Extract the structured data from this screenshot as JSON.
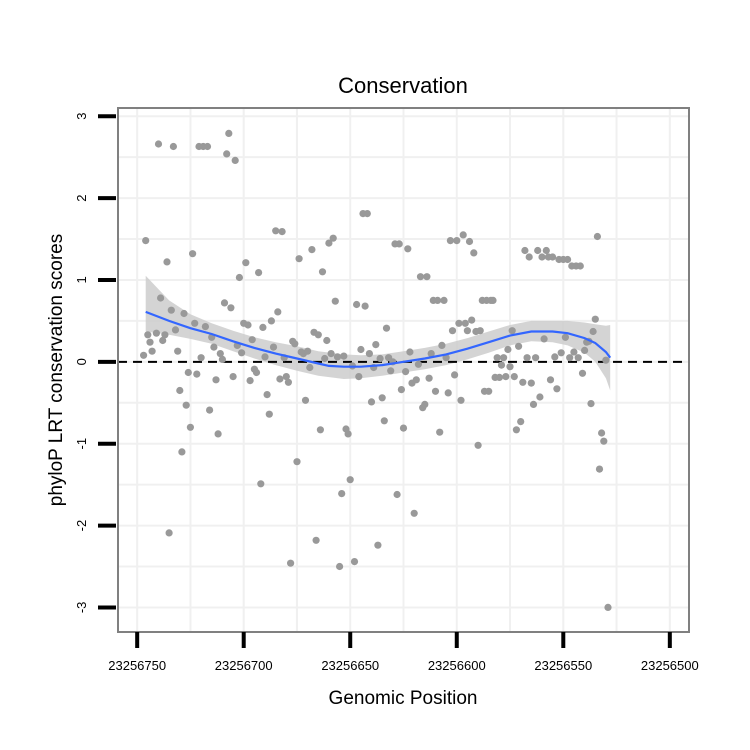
{
  "chart_data": {
    "type": "scatter",
    "title": "Conservation",
    "xlabel": "Genomic Position",
    "ylabel": "phyloP LRT conservation scores",
    "x_reversed": true,
    "xlim": [
      23256759,
      23256491
    ],
    "ylim": [
      -3.3,
      3.1
    ],
    "x_ticks": [
      23256750,
      23256700,
      23256650,
      23256600,
      23256550,
      23256500
    ],
    "x_tick_labels": [
      "23256750",
      "23256700",
      "23256650",
      "23256600",
      "23256550",
      "23256500"
    ],
    "y_ticks": [
      -3,
      -2,
      -1,
      0,
      1,
      2,
      3
    ],
    "y_tick_labels": [
      "-3",
      "-2",
      "-1",
      "0",
      "1",
      "2",
      "3"
    ],
    "reference_line": {
      "y": 0,
      "style": "dashed"
    },
    "colors": {
      "points": "#999999",
      "smooth_line": "#3366ff",
      "confidence_band": "#cccccc",
      "panel_border": "#808080",
      "grid": "#f0f0f0"
    },
    "points": [
      [
        23256746,
        1.48
      ],
      [
        23256747,
        0.08
      ],
      [
        23256745,
        0.33
      ],
      [
        23256744,
        0.24
      ],
      [
        23256743,
        0.13
      ],
      [
        23256741,
        0.35
      ],
      [
        23256740,
        2.66
      ],
      [
        23256739,
        0.78
      ],
      [
        23256738,
        0.26
      ],
      [
        23256737,
        0.33
      ],
      [
        23256736,
        1.22
      ],
      [
        23256735,
        -2.09
      ],
      [
        23256734,
        0.63
      ],
      [
        23256733,
        2.63
      ],
      [
        23256732,
        0.39
      ],
      [
        23256731,
        0.13
      ],
      [
        23256730,
        -0.35
      ],
      [
        23256729,
        -1.1
      ],
      [
        23256728,
        0.59
      ],
      [
        23256727,
        -0.53
      ],
      [
        23256726,
        -0.13
      ],
      [
        23256725,
        -0.8
      ],
      [
        23256724,
        1.32
      ],
      [
        23256723,
        0.47
      ],
      [
        23256722,
        -0.15
      ],
      [
        23256721,
        2.63
      ],
      [
        23256720,
        0.05
      ],
      [
        23256719,
        2.63
      ],
      [
        23256718,
        0.43
      ],
      [
        23256717,
        2.63
      ],
      [
        23256716,
        -0.59
      ],
      [
        23256715,
        0.3
      ],
      [
        23256714,
        0.18
      ],
      [
        23256713,
        -0.22
      ],
      [
        23256712,
        -0.88
      ],
      [
        23256711,
        0.1
      ],
      [
        23256710,
        0.03
      ],
      [
        23256709,
        0.72
      ],
      [
        23256708,
        2.54
      ],
      [
        23256707,
        2.79
      ],
      [
        23256706,
        0.66
      ],
      [
        23256705,
        -0.18
      ],
      [
        23256704,
        2.46
      ],
      [
        23256703,
        0.2
      ],
      [
        23256702,
        1.03
      ],
      [
        23256701,
        0.11
      ],
      [
        23256700,
        0.47
      ],
      [
        23256699,
        1.21
      ],
      [
        23256698,
        0.45
      ],
      [
        23256697,
        -0.23
      ],
      [
        23256696,
        0.27
      ],
      [
        23256695,
        -0.09
      ],
      [
        23256694,
        -0.13
      ],
      [
        23256693,
        1.09
      ],
      [
        23256692,
        -1.49
      ],
      [
        23256691,
        0.42
      ],
      [
        23256690,
        0.06
      ],
      [
        23256689,
        -0.4
      ],
      [
        23256688,
        -0.64
      ],
      [
        23256687,
        0.5
      ],
      [
        23256686,
        0.18
      ],
      [
        23256685,
        1.6
      ],
      [
        23256684,
        0.61
      ],
      [
        23256683,
        -0.21
      ],
      [
        23256682,
        1.59
      ],
      [
        23256681,
        0.05
      ],
      [
        23256680,
        -0.18
      ],
      [
        23256679,
        -0.25
      ],
      [
        23256678,
        -2.46
      ],
      [
        23256677,
        0.25
      ],
      [
        23256676,
        0.22
      ],
      [
        23256675,
        -1.22
      ],
      [
        23256674,
        1.26
      ],
      [
        23256673,
        0.12
      ],
      [
        23256672,
        0.1
      ],
      [
        23256671,
        -0.47
      ],
      [
        23256670,
        0.13
      ],
      [
        23256669,
        -0.07
      ],
      [
        23256668,
        1.37
      ],
      [
        23256667,
        0.36
      ],
      [
        23256666,
        -2.18
      ],
      [
        23256665,
        0.33
      ],
      [
        23256664,
        -0.83
      ],
      [
        23256663,
        1.1
      ],
      [
        23256662,
        0.04
      ],
      [
        23256661,
        0.26
      ],
      [
        23256660,
        1.45
      ],
      [
        23256659,
        0.1
      ],
      [
        23256658,
        1.51
      ],
      [
        23256657,
        0.74
      ],
      [
        23256656,
        0.06
      ],
      [
        23256655,
        -2.5
      ],
      [
        23256654,
        -1.61
      ],
      [
        23256653,
        0.07
      ],
      [
        23256652,
        -0.82
      ],
      [
        23256651,
        -0.88
      ],
      [
        23256650,
        -1.44
      ],
      [
        23256649,
        -0.05
      ],
      [
        23256648,
        -2.44
      ],
      [
        23256647,
        0.7
      ],
      [
        23256646,
        -0.18
      ],
      [
        23256645,
        0.15
      ],
      [
        23256644,
        1.81
      ],
      [
        23256643,
        0.68
      ],
      [
        23256642,
        1.81
      ],
      [
        23256641,
        0.1
      ],
      [
        23256640,
        -0.49
      ],
      [
        23256639,
        -0.07
      ],
      [
        23256638,
        0.21
      ],
      [
        23256637,
        -2.24
      ],
      [
        23256636,
        0.04
      ],
      [
        23256635,
        -0.44
      ],
      [
        23256634,
        -0.72
      ],
      [
        23256633,
        0.41
      ],
      [
        23256632,
        0.05
      ],
      [
        23256631,
        -0.11
      ],
      [
        23256630,
        0.0
      ],
      [
        23256629,
        1.44
      ],
      [
        23256628,
        -1.62
      ],
      [
        23256627,
        1.44
      ],
      [
        23256626,
        -0.34
      ],
      [
        23256625,
        -0.81
      ],
      [
        23256624,
        -0.12
      ],
      [
        23256623,
        1.38
      ],
      [
        23256622,
        0.12
      ],
      [
        23256621,
        -0.26
      ],
      [
        23256620,
        -1.85
      ],
      [
        23256619,
        -0.22
      ],
      [
        23256618,
        -0.03
      ],
      [
        23256617,
        1.04
      ],
      [
        23256616,
        -0.56
      ],
      [
        23256615,
        -0.52
      ],
      [
        23256614,
        1.04
      ],
      [
        23256613,
        -0.2
      ],
      [
        23256612,
        0.1
      ],
      [
        23256611,
        0.75
      ],
      [
        23256610,
        -0.36
      ],
      [
        23256609,
        0.75
      ],
      [
        23256608,
        -0.86
      ],
      [
        23256607,
        0.2
      ],
      [
        23256606,
        0.75
      ],
      [
        23256605,
        0.05
      ],
      [
        23256604,
        -0.38
      ],
      [
        23256603,
        1.48
      ],
      [
        23256602,
        0.38
      ],
      [
        23256601,
        -0.16
      ],
      [
        23256600,
        1.48
      ],
      [
        23256599,
        0.47
      ],
      [
        23256598,
        -0.47
      ],
      [
        23256597,
        1.55
      ],
      [
        23256596,
        0.47
      ],
      [
        23256595,
        0.38
      ],
      [
        23256594,
        1.47
      ],
      [
        23256593,
        0.51
      ],
      [
        23256592,
        1.33
      ],
      [
        23256591,
        0.37
      ],
      [
        23256590,
        -1.02
      ],
      [
        23256589,
        0.38
      ],
      [
        23256588,
        0.75
      ],
      [
        23256587,
        -0.36
      ],
      [
        23256586,
        0.75
      ],
      [
        23256585,
        -0.36
      ],
      [
        23256584,
        0.75
      ],
      [
        23256583,
        0.75
      ],
      [
        23256582,
        -0.19
      ],
      [
        23256581,
        0.05
      ],
      [
        23256580,
        -0.19
      ],
      [
        23256579,
        -0.04
      ],
      [
        23256578,
        0.05
      ],
      [
        23256577,
        -0.18
      ],
      [
        23256576,
        0.15
      ],
      [
        23256575,
        -0.06
      ],
      [
        23256574,
        0.38
      ],
      [
        23256573,
        -0.18
      ],
      [
        23256572,
        -0.83
      ],
      [
        23256571,
        0.19
      ],
      [
        23256570,
        -0.73
      ],
      [
        23256569,
        -0.25
      ],
      [
        23256568,
        1.36
      ],
      [
        23256567,
        0.05
      ],
      [
        23256566,
        1.28
      ],
      [
        23256565,
        -0.26
      ],
      [
        23256564,
        -0.52
      ],
      [
        23256563,
        0.05
      ],
      [
        23256562,
        1.36
      ],
      [
        23256561,
        -0.43
      ],
      [
        23256560,
        1.28
      ],
      [
        23256559,
        0.28
      ],
      [
        23256558,
        1.36
      ],
      [
        23256557,
        1.28
      ],
      [
        23256556,
        -0.22
      ],
      [
        23256555,
        1.28
      ],
      [
        23256554,
        0.06
      ],
      [
        23256553,
        -0.33
      ],
      [
        23256552,
        1.25
      ],
      [
        23256551,
        0.11
      ],
      [
        23256550,
        1.25
      ],
      [
        23256549,
        0.3
      ],
      [
        23256548,
        1.25
      ],
      [
        23256547,
        0.05
      ],
      [
        23256546,
        1.17
      ],
      [
        23256545,
        0.12
      ],
      [
        23256544,
        1.17
      ],
      [
        23256543,
        0.05
      ],
      [
        23256542,
        1.17
      ],
      [
        23256541,
        -0.14
      ],
      [
        23256540,
        0.14
      ],
      [
        23256539,
        0.24
      ],
      [
        23256538,
        0.25
      ],
      [
        23256537,
        -0.51
      ],
      [
        23256536,
        0.37
      ],
      [
        23256535,
        0.52
      ],
      [
        23256534,
        1.53
      ],
      [
        23256533,
        -1.31
      ],
      [
        23256532,
        -0.87
      ],
      [
        23256531,
        -0.97
      ],
      [
        23256530,
        0.02
      ],
      [
        23256529,
        -3.0
      ]
    ],
    "smooth": [
      [
        23256746,
        0.61
      ],
      [
        23256735,
        0.5
      ],
      [
        23256725,
        0.41
      ],
      [
        23256715,
        0.34
      ],
      [
        23256705,
        0.25
      ],
      [
        23256695,
        0.17
      ],
      [
        23256685,
        0.1
      ],
      [
        23256675,
        0.04
      ],
      [
        23256665,
        -0.02
      ],
      [
        23256660,
        -0.05
      ],
      [
        23256653,
        -0.06
      ],
      [
        23256645,
        -0.06
      ],
      [
        23256635,
        -0.04
      ],
      [
        23256625,
        0.0
      ],
      [
        23256615,
        0.04
      ],
      [
        23256605,
        0.09
      ],
      [
        23256595,
        0.16
      ],
      [
        23256585,
        0.24
      ],
      [
        23256575,
        0.32
      ],
      [
        23256565,
        0.37
      ],
      [
        23256555,
        0.37
      ],
      [
        23256548,
        0.35
      ],
      [
        23256540,
        0.29
      ],
      [
        23256535,
        0.23
      ],
      [
        23256530,
        0.12
      ],
      [
        23256528,
        0.05
      ]
    ],
    "confidence_band": [
      [
        23256746,
        0.37,
        1.05
      ],
      [
        23256735,
        0.33,
        0.75
      ],
      [
        23256725,
        0.28,
        0.58
      ],
      [
        23256715,
        0.22,
        0.47
      ],
      [
        23256705,
        0.13,
        0.38
      ],
      [
        23256695,
        0.04,
        0.3
      ],
      [
        23256685,
        -0.04,
        0.24
      ],
      [
        23256675,
        -0.11,
        0.19
      ],
      [
        23256665,
        -0.17,
        0.13
      ],
      [
        23256653,
        -0.21,
        0.09
      ],
      [
        23256645,
        -0.2,
        0.08
      ],
      [
        23256635,
        -0.17,
        0.09
      ],
      [
        23256625,
        -0.13,
        0.13
      ],
      [
        23256615,
        -0.09,
        0.17
      ],
      [
        23256605,
        -0.04,
        0.22
      ],
      [
        23256595,
        0.03,
        0.29
      ],
      [
        23256585,
        0.11,
        0.37
      ],
      [
        23256575,
        0.2,
        0.45
      ],
      [
        23256565,
        0.25,
        0.5
      ],
      [
        23256555,
        0.24,
        0.5
      ],
      [
        23256548,
        0.2,
        0.5
      ],
      [
        23256540,
        0.11,
        0.48
      ],
      [
        23256535,
        0.0,
        0.46
      ],
      [
        23256530,
        -0.2,
        0.44
      ],
      [
        23256528,
        -0.35,
        0.45
      ]
    ]
  }
}
